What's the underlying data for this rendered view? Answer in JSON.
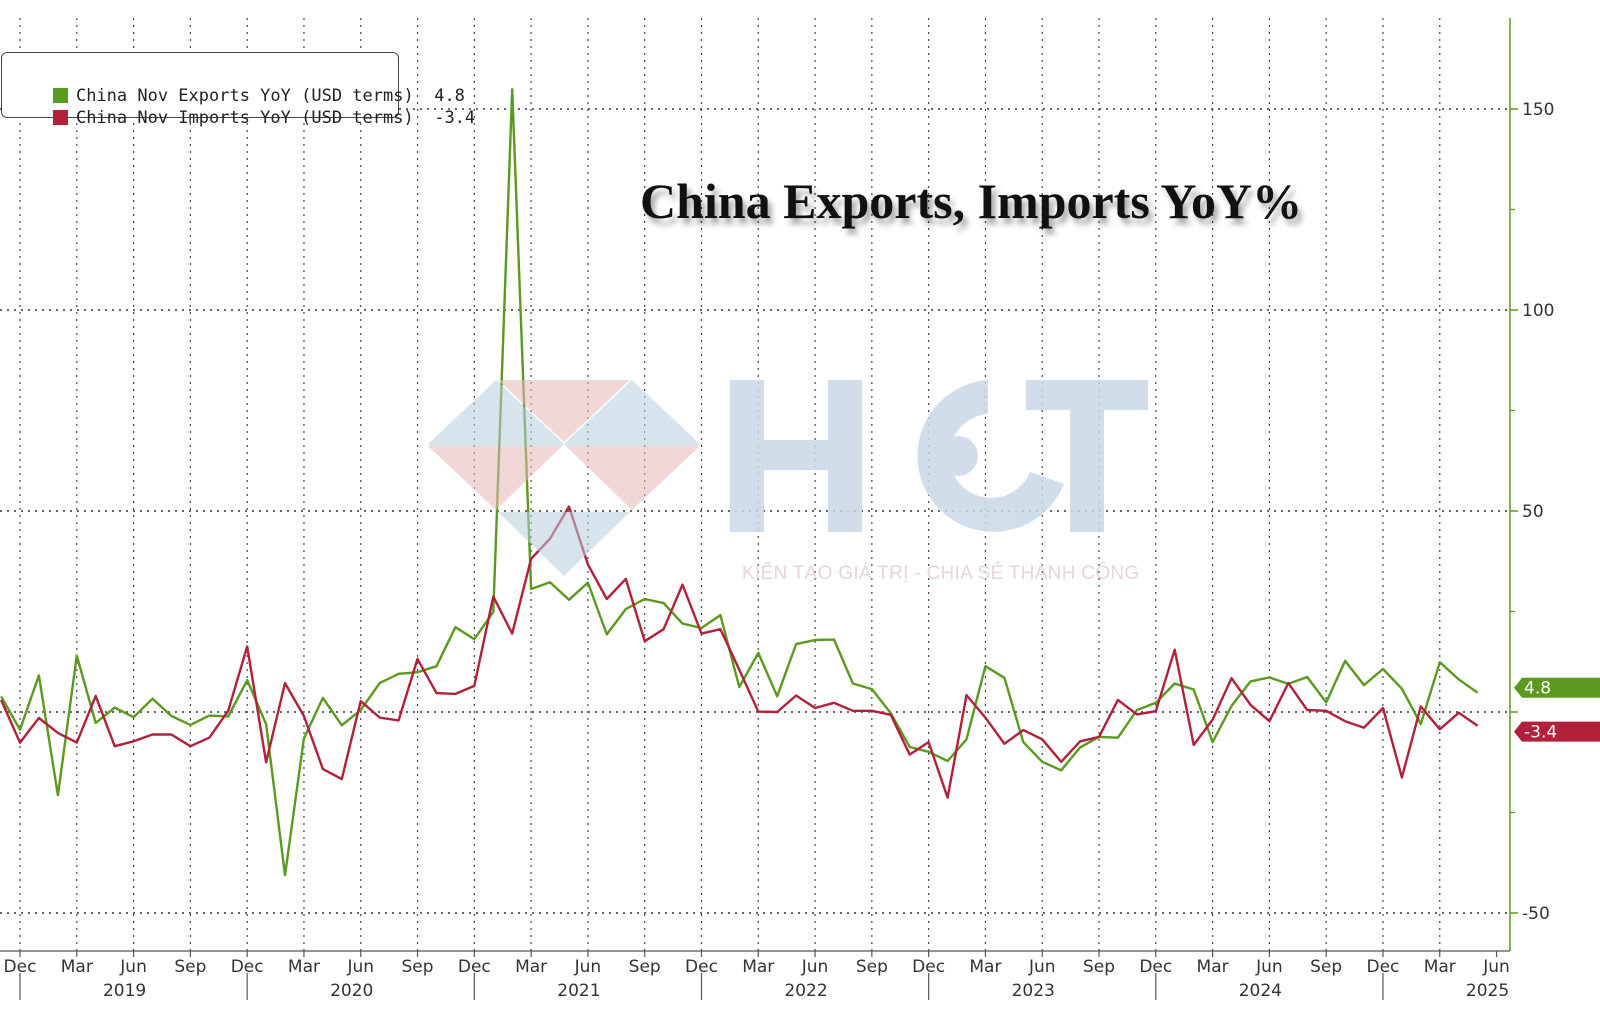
{
  "chart_data": {
    "type": "line",
    "title": "China Exports, Imports YoY%",
    "ylim": [
      -60,
      175
    ],
    "y_ticks": [
      -50,
      0,
      50,
      100,
      150
    ],
    "y_tick_labels": [
      "-50",
      "0",
      "50",
      "100",
      "150"
    ],
    "x_month_labels": [
      "Dec",
      "Mar",
      "Jun",
      "Sep",
      "Dec",
      "Mar",
      "Jun",
      "Sep",
      "Dec",
      "Mar",
      "Jun",
      "Sep",
      "Dec",
      "Mar",
      "Jun",
      "Sep",
      "Dec",
      "Mar",
      "Jun",
      "Sep",
      "Dec",
      "Mar",
      "Jun",
      "Sep",
      "Dec",
      "Mar",
      "Jun"
    ],
    "x_year_labels": [
      "2019",
      "2020",
      "2021",
      "2022",
      "2023",
      "2024",
      "2025"
    ],
    "x_start": "2018-11",
    "x_end": "2025-07",
    "grid": true,
    "legend_position": "top-left",
    "series": [
      {
        "name": "China Nov Exports YoY (USD terms)",
        "last_value": "4.8",
        "color": "#5a9a1e",
        "points": [
          [
            "2018-11",
            3.9
          ],
          [
            "2018-12",
            -4.4
          ],
          [
            "2019-01",
            9.1
          ],
          [
            "2019-02",
            -20.7
          ],
          [
            "2019-03",
            14.0
          ],
          [
            "2019-04",
            -2.7
          ],
          [
            "2019-05",
            1.1
          ],
          [
            "2019-06",
            -1.3
          ],
          [
            "2019-07",
            3.3
          ],
          [
            "2019-08",
            -1.0
          ],
          [
            "2019-09",
            -3.2
          ],
          [
            "2019-10",
            -0.9
          ],
          [
            "2019-11",
            -1.1
          ],
          [
            "2019-12",
            7.9
          ],
          [
            "2020-01",
            -3.0
          ],
          [
            "2020-02",
            -40.6
          ],
          [
            "2020-03",
            -6.6
          ],
          [
            "2020-04",
            3.5
          ],
          [
            "2020-05",
            -3.3
          ],
          [
            "2020-06",
            0.5
          ],
          [
            "2020-07",
            7.2
          ],
          [
            "2020-08",
            9.5
          ],
          [
            "2020-09",
            9.9
          ],
          [
            "2020-10",
            11.4
          ],
          [
            "2020-11",
            21.1
          ],
          [
            "2020-12",
            18.1
          ],
          [
            "2021-01",
            24.9
          ],
          [
            "2021-02",
            154.9
          ],
          [
            "2021-03",
            30.6
          ],
          [
            "2021-04",
            32.3
          ],
          [
            "2021-05",
            27.9
          ],
          [
            "2021-06",
            32.2
          ],
          [
            "2021-07",
            19.3
          ],
          [
            "2021-08",
            25.6
          ],
          [
            "2021-09",
            28.1
          ],
          [
            "2021-10",
            27.1
          ],
          [
            "2021-11",
            22.0
          ],
          [
            "2021-12",
            20.9
          ],
          [
            "2022-01",
            24.1
          ],
          [
            "2022-02",
            6.2
          ],
          [
            "2022-03",
            14.7
          ],
          [
            "2022-04",
            3.9
          ],
          [
            "2022-05",
            16.9
          ],
          [
            "2022-06",
            17.9
          ],
          [
            "2022-07",
            18.0
          ],
          [
            "2022-08",
            7.1
          ],
          [
            "2022-09",
            5.7
          ],
          [
            "2022-10",
            -0.3
          ],
          [
            "2022-11",
            -8.7
          ],
          [
            "2022-12",
            -9.9
          ],
          [
            "2023-01",
            -12.2
          ],
          [
            "2023-02",
            -6.8
          ],
          [
            "2023-03",
            11.4
          ],
          [
            "2023-04",
            8.5
          ],
          [
            "2023-05",
            -7.5
          ],
          [
            "2023-06",
            -12.4
          ],
          [
            "2023-07",
            -14.5
          ],
          [
            "2023-08",
            -8.8
          ],
          [
            "2023-09",
            -6.2
          ],
          [
            "2023-10",
            -6.4
          ],
          [
            "2023-11",
            0.5
          ],
          [
            "2023-12",
            2.3
          ],
          [
            "2024-01",
            7.1
          ],
          [
            "2024-02",
            5.6
          ],
          [
            "2024-03",
            -7.5
          ],
          [
            "2024-04",
            1.5
          ],
          [
            "2024-05",
            7.6
          ],
          [
            "2024-06",
            8.6
          ],
          [
            "2024-07",
            7.0
          ],
          [
            "2024-08",
            8.7
          ],
          [
            "2024-09",
            2.4
          ],
          [
            "2024-10",
            12.7
          ],
          [
            "2024-11",
            6.7
          ],
          [
            "2024-12",
            10.7
          ],
          [
            "2025-01",
            5.8
          ],
          [
            "2025-02",
            -3.0
          ],
          [
            "2025-03",
            12.4
          ],
          [
            "2025-04",
            8.1
          ],
          [
            "2025-05",
            4.8
          ]
        ]
      },
      {
        "name": "China Nov Imports YoY (USD terms)",
        "last_value": "-3.4",
        "color": "#b3203a",
        "points": [
          [
            "2018-11",
            3.0
          ],
          [
            "2018-12",
            -7.6
          ],
          [
            "2019-01",
            -1.5
          ],
          [
            "2019-02",
            -5.2
          ],
          [
            "2019-03",
            -7.6
          ],
          [
            "2019-04",
            4.0
          ],
          [
            "2019-05",
            -8.5
          ],
          [
            "2019-06",
            -7.3
          ],
          [
            "2019-07",
            -5.6
          ],
          [
            "2019-08",
            -5.6
          ],
          [
            "2019-09",
            -8.5
          ],
          [
            "2019-10",
            -6.4
          ],
          [
            "2019-11",
            0.3
          ],
          [
            "2019-12",
            16.3
          ],
          [
            "2020-01",
            -12.5
          ],
          [
            "2020-02",
            7.2
          ],
          [
            "2020-03",
            -1.0
          ],
          [
            "2020-04",
            -14.2
          ],
          [
            "2020-05",
            -16.7
          ],
          [
            "2020-06",
            2.7
          ],
          [
            "2020-07",
            -1.4
          ],
          [
            "2020-08",
            -2.1
          ],
          [
            "2020-09",
            13.2
          ],
          [
            "2020-10",
            4.7
          ],
          [
            "2020-11",
            4.5
          ],
          [
            "2020-12",
            6.5
          ],
          [
            "2021-01",
            28.7
          ],
          [
            "2021-02",
            19.5
          ],
          [
            "2021-03",
            38.1
          ],
          [
            "2021-04",
            43.1
          ],
          [
            "2021-05",
            51.1
          ],
          [
            "2021-06",
            36.7
          ],
          [
            "2021-07",
            28.1
          ],
          [
            "2021-08",
            33.1
          ],
          [
            "2021-09",
            17.6
          ],
          [
            "2021-10",
            20.6
          ],
          [
            "2021-11",
            31.7
          ],
          [
            "2021-12",
            19.5
          ],
          [
            "2022-01",
            20.6
          ],
          [
            "2022-02",
            10.5
          ],
          [
            "2022-03",
            0.1
          ],
          [
            "2022-04",
            0.0
          ],
          [
            "2022-05",
            4.1
          ],
          [
            "2022-06",
            1.0
          ],
          [
            "2022-07",
            2.3
          ],
          [
            "2022-08",
            0.3
          ],
          [
            "2022-09",
            0.3
          ],
          [
            "2022-10",
            -0.7
          ],
          [
            "2022-11",
            -10.6
          ],
          [
            "2022-12",
            -7.5
          ],
          [
            "2023-01",
            -21.3
          ],
          [
            "2023-02",
            4.2
          ],
          [
            "2023-03",
            -1.4
          ],
          [
            "2023-04",
            -7.9
          ],
          [
            "2023-05",
            -4.5
          ],
          [
            "2023-06",
            -6.8
          ],
          [
            "2023-07",
            -12.4
          ],
          [
            "2023-08",
            -7.3
          ],
          [
            "2023-09",
            -6.2
          ],
          [
            "2023-10",
            3.0
          ],
          [
            "2023-11",
            -0.6
          ],
          [
            "2023-12",
            0.2
          ],
          [
            "2024-01",
            15.5
          ],
          [
            "2024-02",
            -8.2
          ],
          [
            "2024-03",
            -1.9
          ],
          [
            "2024-04",
            8.4
          ],
          [
            "2024-05",
            1.8
          ],
          [
            "2024-06",
            -2.3
          ],
          [
            "2024-07",
            7.2
          ],
          [
            "2024-08",
            0.5
          ],
          [
            "2024-09",
            0.3
          ],
          [
            "2024-10",
            -2.3
          ],
          [
            "2024-11",
            -3.9
          ],
          [
            "2024-12",
            1.0
          ],
          [
            "2025-01",
            -16.3
          ],
          [
            "2025-02",
            1.4
          ],
          [
            "2025-03",
            -4.3
          ],
          [
            "2025-04",
            -0.2
          ],
          [
            "2025-05",
            -3.4
          ]
        ]
      }
    ]
  },
  "watermark": {
    "brand": "HCT",
    "tagline": "KIẾN TẠO GIÁ TRỊ - CHIA SẺ THÀNH CÔNG"
  }
}
